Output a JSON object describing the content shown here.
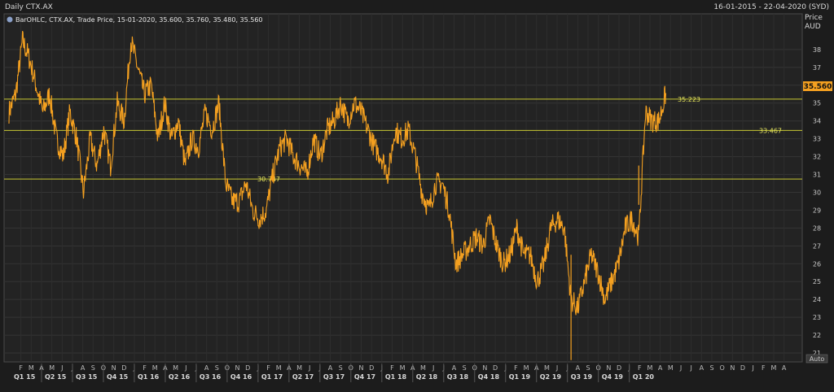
{
  "header": {
    "title": "Daily CTX.AX",
    "range": "16-01-2015 - 22-04-2020 (SYD)",
    "axis_title": "Price",
    "axis_unit": "AUD",
    "auto_label": "Auto"
  },
  "legend": {
    "text": "BarOHLC, CTX.AX, Trade Price, 15-01-2020, 35.600, 35.760, 35.480, 35.560"
  },
  "colors": {
    "background": "#1c1c1c",
    "plot": "#232323",
    "grid": "#3a3a3a",
    "price": "#f4a020",
    "level": "#c8c832",
    "last_box": "#f4a020"
  },
  "chart_data": {
    "type": "line",
    "title": "",
    "xlabel": "",
    "ylabel": "Price AUD",
    "ylim": [
      20.5,
      40
    ],
    "yticks": [
      21,
      22,
      23,
      24,
      25,
      26,
      27,
      28,
      29,
      30,
      31,
      32,
      33,
      34,
      35,
      36,
      37,
      38
    ],
    "x_range": [
      "2015-01",
      "2020-04"
    ],
    "months": [
      "F",
      "M",
      "A",
      "M",
      "J",
      "J",
      "A",
      "S",
      "O",
      "N",
      "D",
      "J",
      "F",
      "M",
      "A",
      "M",
      "J",
      "J",
      "A",
      "S",
      "O",
      "N",
      "D",
      "J",
      "F",
      "M",
      "A",
      "M",
      "J",
      "J",
      "A",
      "S",
      "O",
      "N",
      "D",
      "J",
      "F",
      "M",
      "A",
      "M",
      "J",
      "J",
      "A",
      "S",
      "O",
      "N",
      "D",
      "J",
      "F",
      "M",
      "A",
      "M",
      "J",
      "J",
      "A",
      "S",
      "O",
      "N",
      "D",
      "J",
      "F",
      "M",
      "A",
      "M",
      "J",
      "J",
      "A",
      "S",
      "O",
      "N",
      "D",
      "J",
      "F",
      "M",
      "A"
    ],
    "quarters": [
      "Q1 15",
      "Q2 15",
      "Q3 15",
      "Q4 15",
      "Q1 16",
      "Q2 16",
      "Q3 16",
      "Q4 16",
      "Q1 17",
      "Q2 17",
      "Q3 17",
      "Q4 17",
      "Q1 18",
      "Q2 18",
      "Q3 18",
      "Q4 18",
      "Q1 19",
      "Q2 19",
      "Q3 19",
      "Q4 19",
      "Q1 20"
    ],
    "series": [
      {
        "name": "CTX.AX",
        "points": [
          [
            0,
            34.5
          ],
          [
            1,
            35.5
          ],
          [
            2,
            38.5
          ],
          [
            3,
            37.5
          ],
          [
            4,
            36
          ],
          [
            5,
            34.5
          ],
          [
            6,
            35.5
          ],
          [
            7,
            33
          ],
          [
            8,
            32
          ],
          [
            9,
            34.5
          ],
          [
            10,
            33
          ],
          [
            11,
            30
          ],
          [
            12,
            33
          ],
          [
            13,
            31.5
          ],
          [
            14,
            33.5
          ],
          [
            15,
            31.5
          ],
          [
            16,
            35
          ],
          [
            17,
            34
          ],
          [
            18,
            38.5
          ],
          [
            19,
            37
          ],
          [
            20,
            35.5
          ],
          [
            21,
            36
          ],
          [
            22,
            33
          ],
          [
            23,
            35
          ],
          [
            24,
            33
          ],
          [
            25,
            34
          ],
          [
            26,
            31.5
          ],
          [
            27,
            33
          ],
          [
            28,
            32.5
          ],
          [
            29,
            34.5
          ],
          [
            30,
            33.5
          ],
          [
            31,
            35
          ],
          [
            32,
            30.5
          ],
          [
            33,
            29.5
          ],
          [
            34,
            29.5
          ],
          [
            35,
            30.5
          ],
          [
            36,
            29
          ],
          [
            37,
            28.5
          ],
          [
            38,
            29
          ],
          [
            39,
            31
          ],
          [
            40,
            32.5
          ],
          [
            41,
            33
          ],
          [
            42,
            32
          ],
          [
            43,
            31.5
          ],
          [
            44,
            31
          ],
          [
            45,
            33
          ],
          [
            46,
            32
          ],
          [
            47,
            33.5
          ],
          [
            48,
            34
          ],
          [
            49,
            35
          ],
          [
            50,
            34
          ],
          [
            51,
            35
          ],
          [
            52,
            34.5
          ],
          [
            53,
            33.5
          ],
          [
            54,
            32.5
          ],
          [
            55,
            32
          ],
          [
            56,
            31
          ],
          [
            57,
            33.5
          ],
          [
            58,
            33
          ],
          [
            59,
            33.5
          ],
          [
            60,
            32
          ],
          [
            61,
            30
          ],
          [
            62,
            29
          ],
          [
            63,
            30.5
          ],
          [
            64,
            30.5
          ],
          [
            65,
            29
          ],
          [
            66,
            26
          ],
          [
            67,
            26.5
          ],
          [
            68,
            27
          ],
          [
            69,
            27.5
          ],
          [
            70,
            27
          ],
          [
            71,
            28.5
          ],
          [
            72,
            27
          ],
          [
            73,
            26
          ],
          [
            74,
            26.5
          ],
          [
            75,
            28
          ],
          [
            76,
            26.5
          ],
          [
            77,
            26.5
          ],
          [
            78,
            25
          ],
          [
            79,
            26
          ],
          [
            80,
            28
          ],
          [
            81,
            28.5
          ],
          [
            82,
            28
          ],
          [
            83,
            24
          ],
          [
            84,
            23.5
          ],
          [
            85,
            25
          ],
          [
            86,
            26.5
          ],
          [
            87,
            25.5
          ],
          [
            88,
            24
          ],
          [
            89,
            25
          ],
          [
            90,
            26
          ],
          [
            91,
            28
          ],
          [
            92,
            28.5
          ],
          [
            93,
            27.5
          ],
          [
            94,
            34.5
          ],
          [
            95,
            34
          ],
          [
            96,
            34
          ],
          [
            97,
            35.56
          ]
        ]
      }
    ],
    "levels": [
      {
        "value": 35.223,
        "label": "35.223"
      },
      {
        "value": 33.467,
        "label": "33.467"
      },
      {
        "value": 30.747,
        "label": "30.747"
      }
    ],
    "last_value": "35.560",
    "grid": true,
    "legend": "top-left"
  }
}
